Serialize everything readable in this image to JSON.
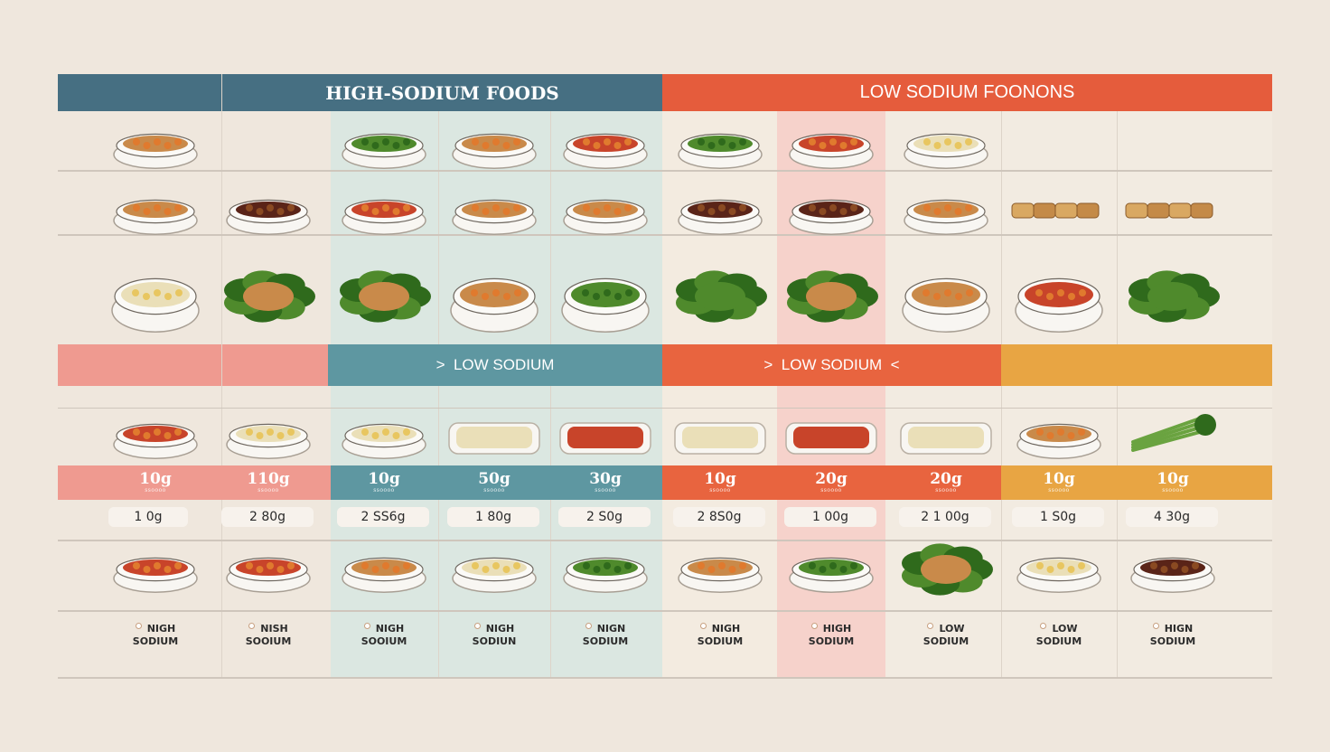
{
  "header": {
    "high_sodium_title": "HIGH-SODIUM FOODS",
    "low_sodium_title": "LOW SODIUM FOONONS"
  },
  "middle_header": {
    "left_label": ">  LOW SODIUM",
    "right_label": ">  LOW SODIUM  <"
  },
  "colors": {
    "teal_header": "#466f82",
    "coral_header": "#e55c3c",
    "mint_band": "#dde8e2",
    "pink_band": "#f6d3cc",
    "salmon": "#ef9a90",
    "teal_mid": "#5e97a1",
    "orange_mid": "#e8643f",
    "amber": "#e8a543"
  },
  "food_rows": [
    {
      "icons": [
        "mixed-plate-icon",
        "",
        "green-olive-bowl-icon",
        "yellow-dish-icon",
        "red-stew-bowl-icon",
        "broccoli-plate-icon",
        "shrimp-plate-icon",
        "mashed-plate-icon",
        "",
        ""
      ]
    },
    {
      "icons": [
        "fried-bites-bowl-icon",
        "jerky-plate-icon",
        "shrimp-bowl-icon",
        "omelet-plate-icon",
        "fried-block-plate-icon",
        "gravy-bowl-icon",
        "steak-plate-icon",
        "patty-plate-icon",
        "crackers-icon",
        "crackers-icon"
      ]
    },
    {
      "icons": [
        "noodle-bowl-icon",
        "bread-greens-icon",
        "chicken-greens-icon",
        "chicken-bowl-icon",
        "salad-bowl-icon",
        "spinach-icon",
        "chicken-greens-icon",
        "taco-bowl-icon",
        "curry-bowl-icon",
        "lettuce-icon"
      ]
    },
    {
      "icons": [
        "curry-bowl-icon",
        "rice-bowl-icon",
        "rice-bowl-icon",
        "cheese-tray-icon",
        "chili-tray-icon",
        "soup-tray-icon",
        "chili-tray-icon",
        "custard-tray-icon",
        "pastry-bowl-icon",
        "celery-icon"
      ]
    },
    {
      "icons": [
        "beans-bowl-icon",
        "tomato-bowl-icon",
        "fries-bowl-icon",
        "yogurt-bowl-icon",
        "salad-bowl-icon",
        "toast-plate-icon",
        "veggie-bowl-icon",
        "greens-bowl-icon",
        "hummus-bowl-icon",
        "jerky-bowl-icon"
      ]
    }
  ],
  "gram_row": [
    {
      "value": "10g",
      "sub": "ssoooo"
    },
    {
      "value": "110g",
      "sub": "ssoooo"
    },
    {
      "value": "10g",
      "sub": "ssoooo"
    },
    {
      "value": "50g",
      "sub": "ssoooo"
    },
    {
      "value": "30g",
      "sub": "ssoooo"
    },
    {
      "value": "10g",
      "sub": "ssoooo"
    },
    {
      "value": "20g",
      "sub": "ssoooo"
    },
    {
      "value": "20g",
      "sub": "ssoooo"
    },
    {
      "value": "10g",
      "sub": "ssoooo"
    },
    {
      "value": "10g",
      "sub": "ssoooo"
    }
  ],
  "amount_row": [
    "1 0g",
    "2 80g",
    "2 SS6g",
    "1 80g",
    "2 S0g",
    "2 8S0g",
    "1 00g",
    "2 1 00g",
    "1 S0g",
    "4 30g"
  ],
  "sodium_labels": [
    {
      "line1": "NIGH",
      "line2": "SODIUM"
    },
    {
      "line1": "NISH",
      "line2": "SOOIUM"
    },
    {
      "line1": "NIGH",
      "line2": "SOOIUM"
    },
    {
      "line1": "NIGH",
      "line2": "SODIUN"
    },
    {
      "line1": "NIGN",
      "line2": "SODIUM"
    },
    {
      "line1": "NIGH",
      "line2": "SODIUM"
    },
    {
      "line1": "HIGH",
      "line2": "SODIUM"
    },
    {
      "line1": "LOW",
      "line2": "SODIUM"
    },
    {
      "line1": "LOW",
      "line2": "SODIUM"
    },
    {
      "line1": "HIGN",
      "line2": "SODIUM"
    }
  ]
}
